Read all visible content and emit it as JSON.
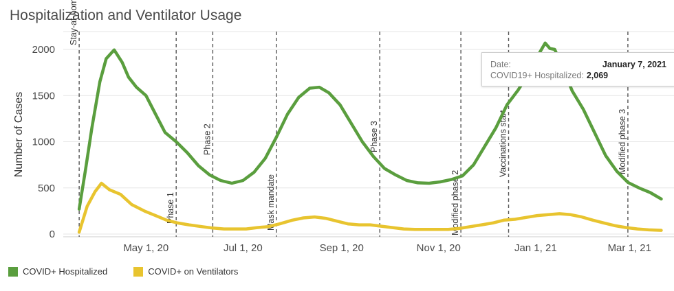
{
  "title": "Hospitalization and Ventilator Usage",
  "colors": {
    "hospitalized": "#5a9e3e",
    "ventilators": "#e8c42f",
    "grid": "#e6e6e6",
    "event_line": "#555555"
  },
  "tooltip": {
    "date_label": "Date:",
    "date_value": "January 7, 2021",
    "metric_label": "COVID19+ Hospitalized:",
    "metric_value": "2,069"
  },
  "chart_data": {
    "type": "line",
    "title": "Hospitalization and Ventilator Usage",
    "xlabel": "",
    "ylabel": "Number of Cases",
    "ylim": [
      0,
      2000
    ],
    "yticks": [
      0,
      500,
      1000,
      1500,
      2000
    ],
    "xlim": [
      "2020-03-10",
      "2021-03-29"
    ],
    "xticks": [
      {
        "date": "2020-05-01",
        "label": "May 1, 20"
      },
      {
        "date": "2020-07-01",
        "label": "Jul 1, 20"
      },
      {
        "date": "2020-09-01",
        "label": "Sep 1, 20"
      },
      {
        "date": "2020-11-01",
        "label": "Nov 1, 20"
      },
      {
        "date": "2021-01-01",
        "label": "Jan 1, 21"
      },
      {
        "date": "2021-03-01",
        "label": "Mar 1, 21"
      }
    ],
    "grid": true,
    "legend_position": "bottom-left",
    "events": [
      {
        "date": "2020-03-20",
        "label": "Stay-at-home order"
      },
      {
        "date": "2020-05-20",
        "label": "Phase 1"
      },
      {
        "date": "2020-06-12",
        "label": "Phase 2"
      },
      {
        "date": "2020-07-22",
        "label": "Mask mandate"
      },
      {
        "date": "2020-09-25",
        "label": "Phase 3"
      },
      {
        "date": "2020-11-15",
        "label": "Modified phase 2"
      },
      {
        "date": "2020-12-15",
        "label": "Vaccinations start"
      },
      {
        "date": "2021-02-28",
        "label": "Modified phase 3"
      }
    ],
    "series": [
      {
        "name": "COVID+ Hospitalized",
        "points": [
          [
            "2020-03-20",
            270
          ],
          [
            "2020-03-24",
            700
          ],
          [
            "2020-03-28",
            1150
          ],
          [
            "2020-04-02",
            1650
          ],
          [
            "2020-04-06",
            1900
          ],
          [
            "2020-04-11",
            1995
          ],
          [
            "2020-04-16",
            1860
          ],
          [
            "2020-04-20",
            1700
          ],
          [
            "2020-04-25",
            1590
          ],
          [
            "2020-05-01",
            1500
          ],
          [
            "2020-05-07",
            1300
          ],
          [
            "2020-05-13",
            1100
          ],
          [
            "2020-05-20",
            1000
          ],
          [
            "2020-05-27",
            880
          ],
          [
            "2020-06-03",
            740
          ],
          [
            "2020-06-10",
            640
          ],
          [
            "2020-06-17",
            580
          ],
          [
            "2020-06-24",
            550
          ],
          [
            "2020-07-01",
            580
          ],
          [
            "2020-07-08",
            670
          ],
          [
            "2020-07-15",
            820
          ],
          [
            "2020-07-22",
            1050
          ],
          [
            "2020-07-29",
            1300
          ],
          [
            "2020-08-05",
            1480
          ],
          [
            "2020-08-12",
            1580
          ],
          [
            "2020-08-18",
            1590
          ],
          [
            "2020-08-24",
            1530
          ],
          [
            "2020-08-31",
            1400
          ],
          [
            "2020-09-07",
            1200
          ],
          [
            "2020-09-14",
            1000
          ],
          [
            "2020-09-21",
            840
          ],
          [
            "2020-09-28",
            710
          ],
          [
            "2020-10-05",
            640
          ],
          [
            "2020-10-12",
            580
          ],
          [
            "2020-10-19",
            555
          ],
          [
            "2020-10-26",
            550
          ],
          [
            "2020-11-02",
            565
          ],
          [
            "2020-11-09",
            590
          ],
          [
            "2020-11-16",
            630
          ],
          [
            "2020-11-23",
            750
          ],
          [
            "2020-11-30",
            950
          ],
          [
            "2020-12-07",
            1150
          ],
          [
            "2020-12-14",
            1400
          ],
          [
            "2020-12-21",
            1560
          ],
          [
            "2020-12-28",
            1750
          ],
          [
            "2021-01-03",
            1950
          ],
          [
            "2021-01-07",
            2069
          ],
          [
            "2021-01-10",
            2010
          ],
          [
            "2021-01-13",
            2000
          ],
          [
            "2021-01-18",
            1800
          ],
          [
            "2021-01-24",
            1550
          ],
          [
            "2021-01-31",
            1350
          ],
          [
            "2021-02-07",
            1100
          ],
          [
            "2021-02-14",
            850
          ],
          [
            "2021-02-21",
            680
          ],
          [
            "2021-02-28",
            560
          ],
          [
            "2021-03-07",
            500
          ],
          [
            "2021-03-14",
            450
          ],
          [
            "2021-03-21",
            380
          ]
        ]
      },
      {
        "name": "COVID+ on Ventilators",
        "points": [
          [
            "2020-03-20",
            20
          ],
          [
            "2020-03-25",
            300
          ],
          [
            "2020-03-30",
            460
          ],
          [
            "2020-04-03",
            550
          ],
          [
            "2020-04-08",
            480
          ],
          [
            "2020-04-15",
            430
          ],
          [
            "2020-04-22",
            320
          ],
          [
            "2020-04-30",
            250
          ],
          [
            "2020-05-07",
            200
          ],
          [
            "2020-05-14",
            150
          ],
          [
            "2020-05-21",
            120
          ],
          [
            "2020-05-28",
            100
          ],
          [
            "2020-06-05",
            80
          ],
          [
            "2020-06-12",
            65
          ],
          [
            "2020-06-19",
            55
          ],
          [
            "2020-06-26",
            55
          ],
          [
            "2020-07-03",
            55
          ],
          [
            "2020-07-10",
            70
          ],
          [
            "2020-07-17",
            80
          ],
          [
            "2020-07-24",
            110
          ],
          [
            "2020-08-01",
            150
          ],
          [
            "2020-08-08",
            175
          ],
          [
            "2020-08-15",
            185
          ],
          [
            "2020-08-22",
            170
          ],
          [
            "2020-08-29",
            140
          ],
          [
            "2020-09-05",
            110
          ],
          [
            "2020-09-12",
            100
          ],
          [
            "2020-09-19",
            100
          ],
          [
            "2020-09-26",
            85
          ],
          [
            "2020-10-03",
            70
          ],
          [
            "2020-10-10",
            55
          ],
          [
            "2020-10-17",
            50
          ],
          [
            "2020-10-24",
            50
          ],
          [
            "2020-10-31",
            50
          ],
          [
            "2020-11-07",
            50
          ],
          [
            "2020-11-14",
            60
          ],
          [
            "2020-11-21",
            80
          ],
          [
            "2020-11-28",
            100
          ],
          [
            "2020-12-05",
            120
          ],
          [
            "2020-12-12",
            150
          ],
          [
            "2020-12-19",
            160
          ],
          [
            "2020-12-26",
            180
          ],
          [
            "2021-01-02",
            200
          ],
          [
            "2021-01-09",
            210
          ],
          [
            "2021-01-16",
            220
          ],
          [
            "2021-01-23",
            210
          ],
          [
            "2021-01-30",
            185
          ],
          [
            "2021-02-06",
            150
          ],
          [
            "2021-02-13",
            120
          ],
          [
            "2021-02-20",
            90
          ],
          [
            "2021-02-27",
            70
          ],
          [
            "2021-03-06",
            55
          ],
          [
            "2021-03-13",
            45
          ],
          [
            "2021-03-21",
            40
          ]
        ]
      }
    ]
  }
}
